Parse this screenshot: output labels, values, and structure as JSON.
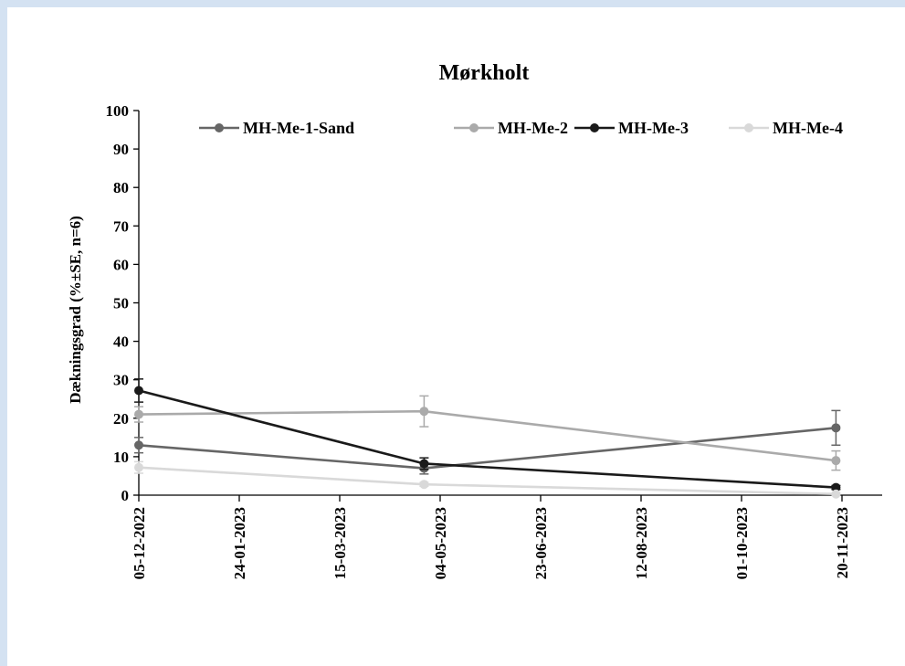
{
  "chart_data": {
    "type": "line",
    "title": "Mørkholt",
    "xlabel": "",
    "ylabel": "Dækningsgrad (%±SE, n=6)",
    "ylim": [
      0,
      100
    ],
    "yticks": [
      "0",
      "10",
      "20",
      "30",
      "40",
      "50",
      "60",
      "70",
      "80",
      "90",
      "100"
    ],
    "xlim": [
      "2022-12-05",
      "2023-12-10"
    ],
    "xticks": [
      "05-12-2022",
      "24-01-2023",
      "15-03-2023",
      "04-05-2023",
      "23-06-2023",
      "12-08-2023",
      "01-10-2023",
      "20-11-2023"
    ],
    "x": [
      "2022-12-05",
      "2023-04-26",
      "2023-11-17"
    ],
    "grid": false,
    "legend": "top",
    "series": [
      {
        "name": "MH-Me-1-Sand",
        "color": "#666666",
        "values": [
          13,
          7,
          17.5
        ],
        "error": [
          2,
          1.5,
          4.5
        ]
      },
      {
        "name": "MH-Me-2",
        "color": "#aaaaaa",
        "values": [
          21,
          21.8,
          9
        ],
        "error": [
          2,
          4,
          2.5
        ]
      },
      {
        "name": "MH-Me-3",
        "color": "#1a1a1a",
        "values": [
          27.2,
          8.2,
          2
        ],
        "error": [
          3,
          1.5,
          0.5
        ]
      },
      {
        "name": "MH-Me-4",
        "color": "#d9d9d9",
        "values": [
          7.2,
          2.8,
          0.3
        ],
        "error": [
          1.5,
          0.5,
          0.2
        ]
      }
    ]
  }
}
